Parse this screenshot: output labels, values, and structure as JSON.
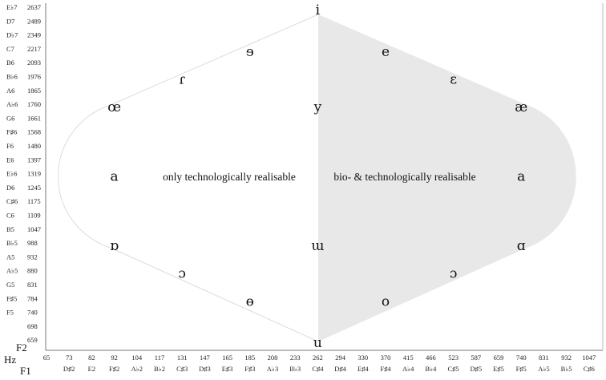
{
  "chart_data": {
    "type": "diagram",
    "f2_axis": {
      "label": "F2",
      "notes": [
        "E♭7",
        "D7",
        "D♭7",
        "C7",
        "B6",
        "B♭6",
        "A6",
        "A♭6",
        "G6",
        "F♯6",
        "F6",
        "E6",
        "E♭6",
        "D6",
        "C♯6",
        "C6",
        "B5",
        "B♭5",
        "A5",
        "A♭5",
        "G5",
        "F♯5",
        "F5"
      ],
      "hz": [
        2637,
        2489,
        2349,
        2217,
        2093,
        1976,
        1865,
        1760,
        1661,
        1568,
        1480,
        1397,
        1319,
        1245,
        1175,
        1109,
        1047,
        988,
        932,
        880,
        831,
        784,
        740,
        698,
        659
      ]
    },
    "f1_axis": {
      "label": "F1",
      "unit": "Hz",
      "hz": [
        65,
        73,
        82,
        92,
        104,
        117,
        131,
        147,
        165,
        185,
        208,
        233,
        262,
        294,
        330,
        370,
        415,
        466,
        523,
        587,
        659,
        740,
        831,
        932,
        1047
      ],
      "notes": [
        "D♯2",
        "E2",
        "F♯2",
        "A♭2",
        "B♭2",
        "C♯3",
        "D♯3",
        "E♯3",
        "F♯3",
        "A♭3",
        "B♭3",
        "C♯4",
        "D♯4",
        "E♯4",
        "F♯4",
        "A♭4",
        "B♭4",
        "C♯5",
        "D♯5",
        "E♯5",
        "F♯5",
        "A♭5",
        "B♭5",
        "C♯6"
      ]
    },
    "regions": [
      {
        "label": "only technologically realisable"
      },
      {
        "label": "bio- & technologically realisable"
      }
    ],
    "vowels": [
      {
        "symbol": "i",
        "f1": 262,
        "f2": 2637
      },
      {
        "symbol": "ɘ",
        "f1": 185,
        "f2": 2217
      },
      {
        "symbol": "e",
        "f1": 370,
        "f2": 2217
      },
      {
        "symbol": "ɾ",
        "f1": 131,
        "f2": 1976
      },
      {
        "symbol": "ɛ",
        "f1": 523,
        "f2": 1976
      },
      {
        "symbol": "œ",
        "f1": 92,
        "f2": 1760
      },
      {
        "symbol": "y",
        "f1": 262,
        "f2": 1760
      },
      {
        "symbol": "æ",
        "f1": 740,
        "f2": 1760
      },
      {
        "symbol": "a",
        "f1": 92,
        "f2": 1319
      },
      {
        "symbol": "a",
        "f1": 740,
        "f2": 1319
      },
      {
        "symbol": "ɒ",
        "f1": 92,
        "f2": 988
      },
      {
        "symbol": "ɯ",
        "f1": 262,
        "f2": 988
      },
      {
        "symbol": "ɑ",
        "f1": 740,
        "f2": 988
      },
      {
        "symbol": "ɔ",
        "f1": 131,
        "f2": 880
      },
      {
        "symbol": "ɔ",
        "f1": 523,
        "f2": 880
      },
      {
        "symbol": "ɵ",
        "f1": 185,
        "f2": 784
      },
      {
        "symbol": "o",
        "f1": 370,
        "f2": 784
      },
      {
        "symbol": "u",
        "f1": 262,
        "f2": 659
      }
    ],
    "colors": {
      "bio_region_fill": "#e8e8e8",
      "tech_region_stroke": "#d8d8d8",
      "axis": "#777777"
    }
  }
}
